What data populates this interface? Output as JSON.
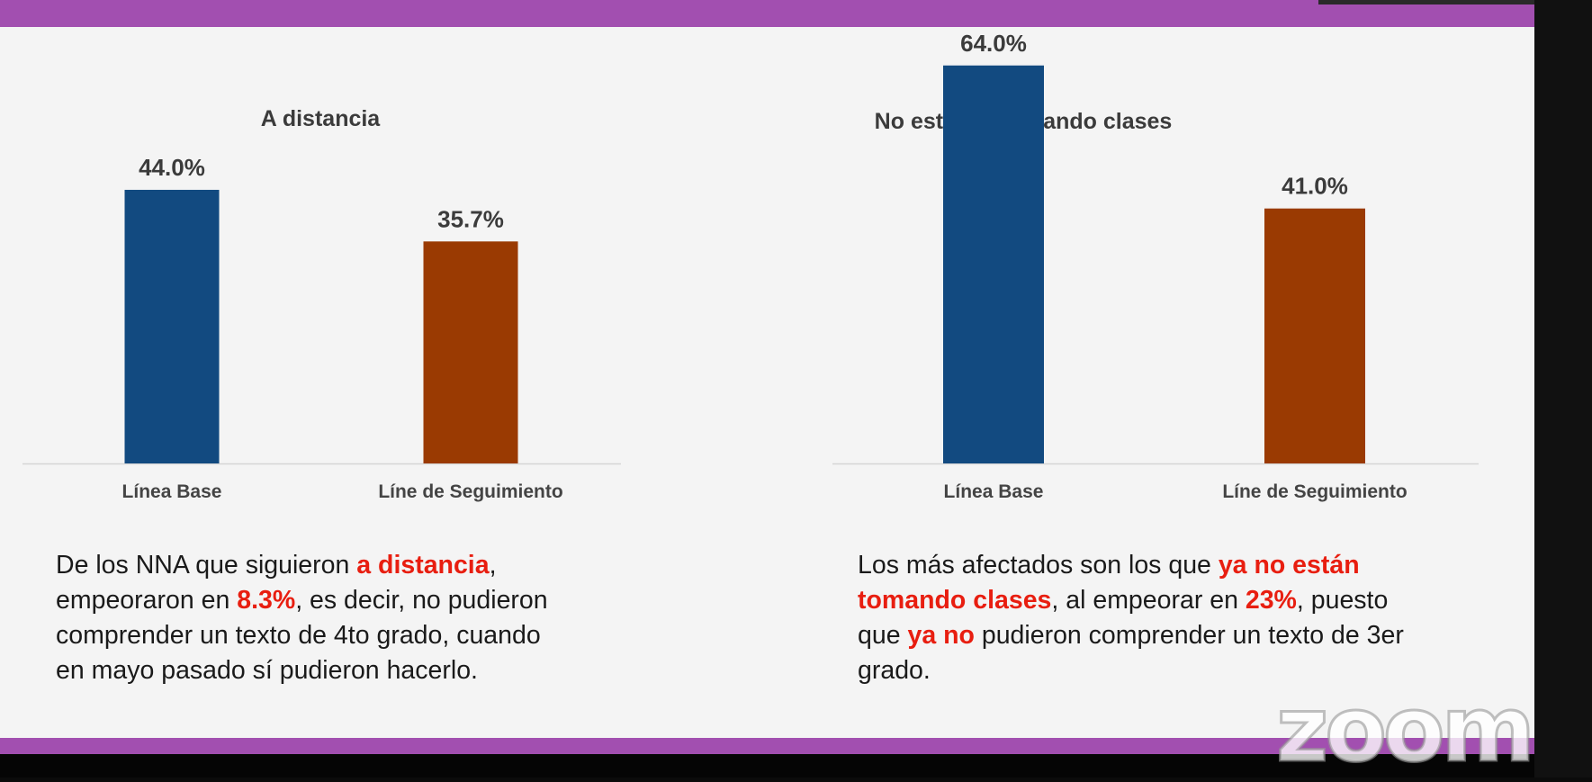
{
  "chart_data": [
    {
      "type": "bar",
      "title": "A distancia",
      "categories": [
        "Línea Base",
        "Líne de Seguimiento"
      ],
      "values": [
        44.0,
        35.7
      ],
      "data_labels": [
        "44.0%",
        "35.7%"
      ],
      "ylim": [
        0,
        70
      ],
      "colors": [
        "#124a80",
        "#9a3a02"
      ],
      "grid": false,
      "legend": "none"
    },
    {
      "type": "bar",
      "title": "No estaban tomando clases",
      "categories": [
        "Línea Base",
        "Líne de Seguimiento"
      ],
      "values": [
        64.0,
        41.0
      ],
      "data_labels": [
        "64.0%",
        "41.0%"
      ],
      "ylim": [
        0,
        70
      ],
      "colors": [
        "#124a80",
        "#9a3a02"
      ],
      "grid": false,
      "legend": "none"
    }
  ],
  "captions": {
    "left": {
      "p1": "De los NNA que siguieron ",
      "hl1": "a distancia",
      "p2": ",",
      "p3": "empeoraron en ",
      "hl2": "8.3%",
      "p4": ", es decir, no pudieron",
      "p5": "comprender un texto de 4to grado, cuando",
      "p6": "en mayo pasado sí pudieron hacerlo."
    },
    "right": {
      "p1": "Los más afectados son los que ",
      "hl1": "ya no están",
      "hl2": "tomando clases",
      "p2": ", al empeorar en ",
      "hl3": "23%",
      "p3": ", puesto",
      "p4": "que ",
      "hl4": "ya no",
      "p5": " pudieron comprender un texto de 3er",
      "p6": "grado."
    }
  },
  "watermark": "zoom",
  "colors": {
    "band": "#a24fb0",
    "highlight": "#e81e10",
    "series_base": "#124a80",
    "series_followup": "#9a3a02"
  }
}
